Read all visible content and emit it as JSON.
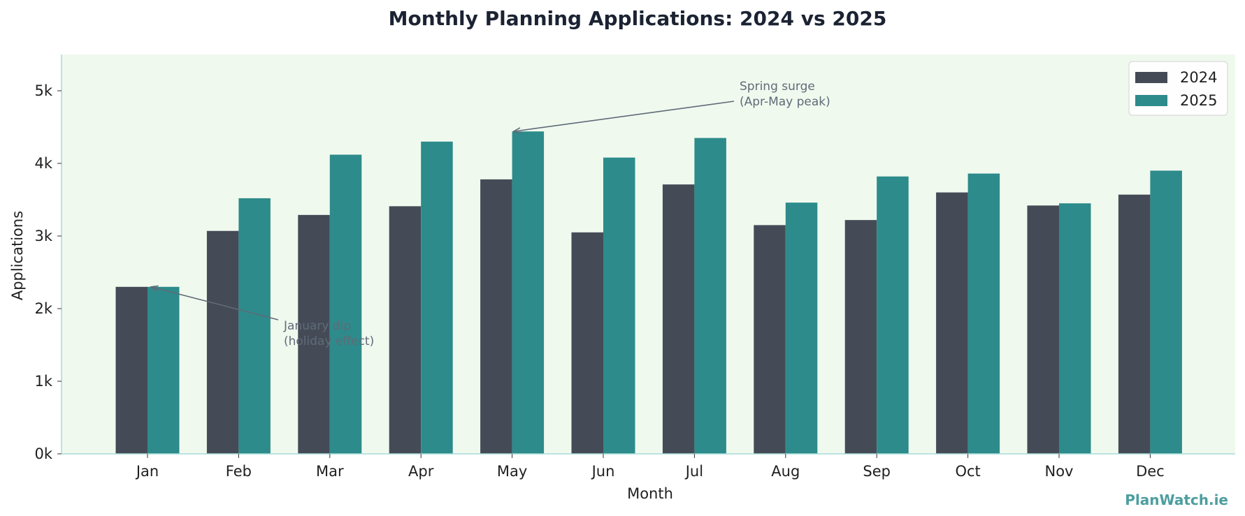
{
  "colors": {
    "series_2024": "#454b56",
    "series_2025": "#2d8b8b",
    "plot_background": "#f0f9ee",
    "axis_line": "#a8dcd9",
    "annotation": "#5f6b78",
    "watermark": "#4d9e9e"
  },
  "watermark": "PlanWatch.ie",
  "chart_data": {
    "type": "bar",
    "title": "Monthly Planning Applications: 2024 vs 2025",
    "xlabel": "Month",
    "ylabel": "Applications",
    "categories": [
      "Jan",
      "Feb",
      "Mar",
      "Apr",
      "May",
      "Jun",
      "Jul",
      "Aug",
      "Sep",
      "Oct",
      "Nov",
      "Dec"
    ],
    "series": [
      {
        "name": "2024",
        "values": [
          2300,
          3070,
          3290,
          3410,
          3780,
          3050,
          3710,
          3150,
          3220,
          3600,
          3420,
          3570
        ]
      },
      {
        "name": "2025",
        "values": [
          2300,
          3520,
          4120,
          4300,
          4440,
          4080,
          4350,
          3460,
          3820,
          3860,
          3450,
          3900
        ]
      }
    ],
    "ylim": [
      0,
      5500
    ],
    "yticks": [
      0,
      1000,
      2000,
      3000,
      4000,
      5000
    ],
    "ytick_labels": [
      "0k",
      "1k",
      "2k",
      "3k",
      "4k",
      "5k"
    ],
    "grid": false,
    "legend_position": "top-right",
    "annotations": [
      {
        "lines": [
          "Spring surge",
          "(Apr-May peak)"
        ],
        "category": "May",
        "series": "2025",
        "value": 4440
      },
      {
        "lines": [
          "January dip",
          "(holiday effect)"
        ],
        "category": "Jan",
        "series": "2024",
        "value": 2300
      }
    ]
  }
}
